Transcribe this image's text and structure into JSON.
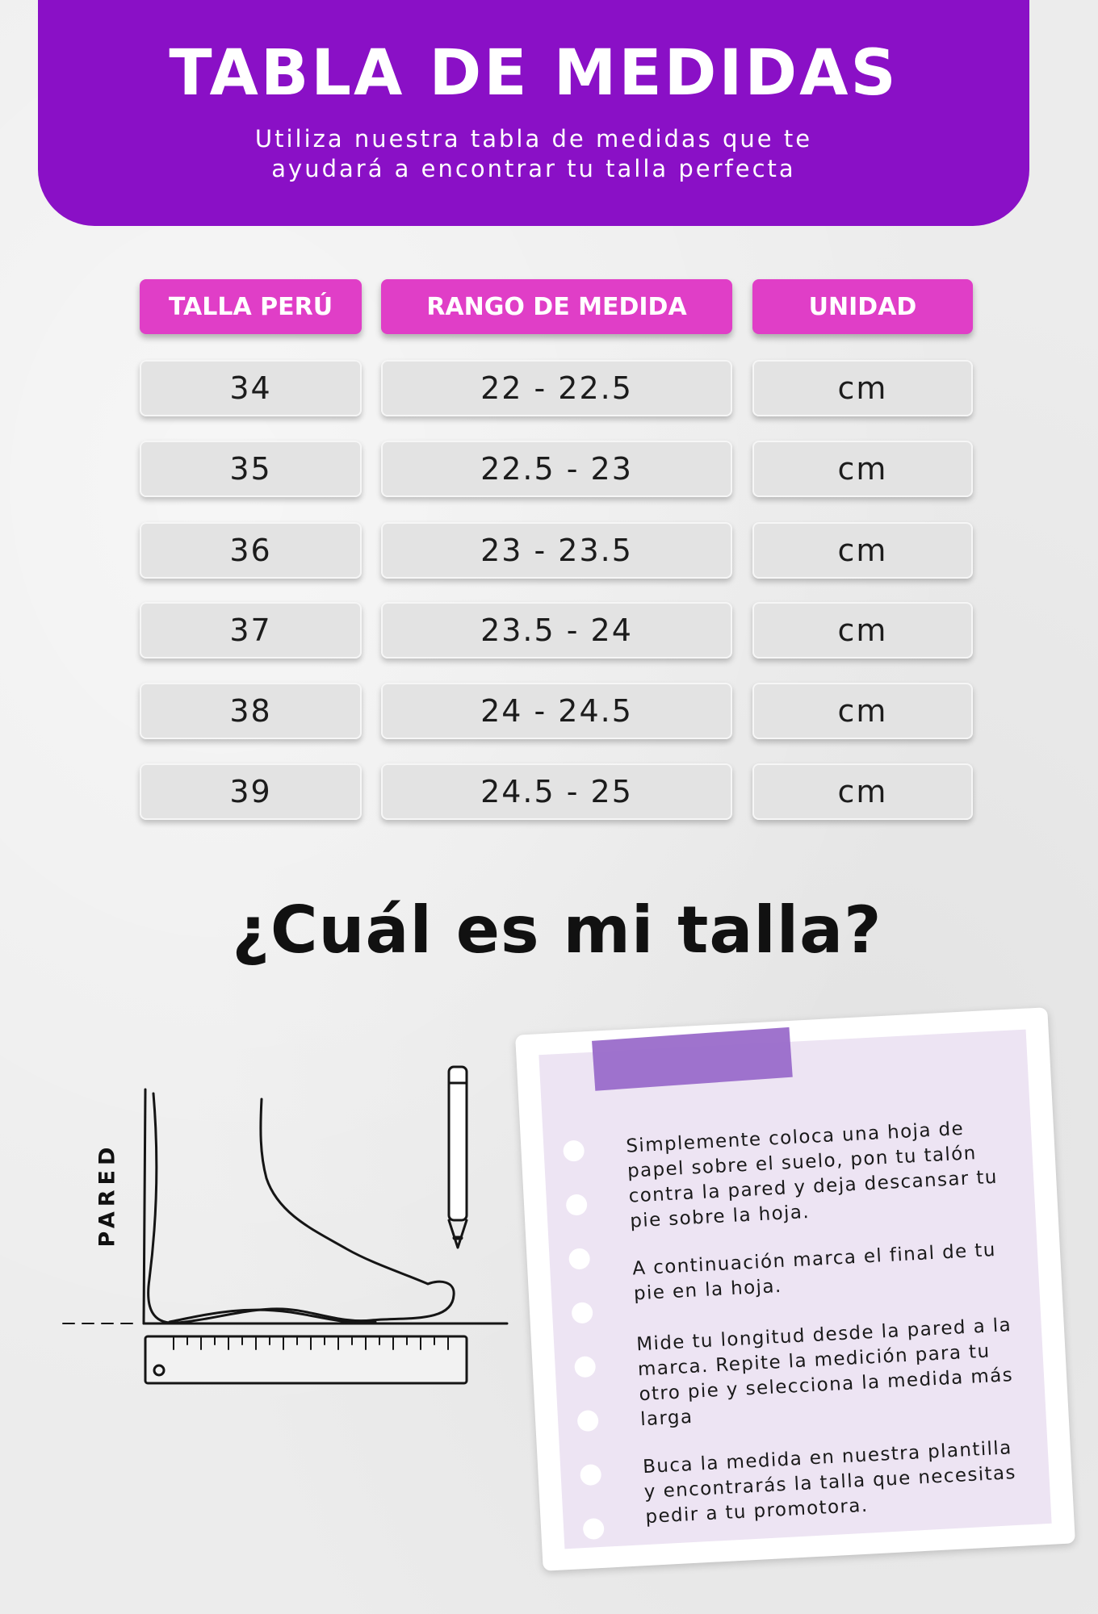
{
  "header": {
    "title": "TABLA DE MEDIDAS",
    "subtitle": "Utiliza nuestra tabla de medidas que te ayudará a encontrar tu talla perfecta"
  },
  "table": {
    "headers": [
      "TALLA PERÚ",
      "RANGO DE MEDIDA",
      "UNIDAD"
    ],
    "rows": [
      [
        "34",
        "22  -  22.5",
        "cm"
      ],
      [
        "35",
        "22.5  -  23",
        "cm"
      ],
      [
        "36",
        "23  -  23.5",
        "cm"
      ],
      [
        "37",
        "23.5  -  24",
        "cm"
      ],
      [
        "38",
        "24  -  24.5",
        "cm"
      ],
      [
        "39",
        "24.5  -  25",
        "cm"
      ]
    ]
  },
  "question": "¿Cuál es mi talla?",
  "diagram": {
    "wall_label": "PARED"
  },
  "note": {
    "steps": [
      "Simplemente coloca una hoja de papel sobre el suelo, pon tu talón contra la pared y deja descansar tu pie sobre la hoja.",
      "A continuación marca el final de tu pie en la hoja.",
      "Mide tu longitud desde la pared a la marca. Repite la medición para tu otro pie y selecciona la medida más larga",
      "Buca la medida en nuestra plantilla y encontrarás la talla que necesitas pedir a tu promotora."
    ]
  },
  "colors": {
    "header_purple": "#8a10c6",
    "table_header_pink": "#e03ec7",
    "cell_grey": "#e3e3e3",
    "note_lilac": "#ede4f3",
    "tape_purple": "#9a6cca"
  }
}
